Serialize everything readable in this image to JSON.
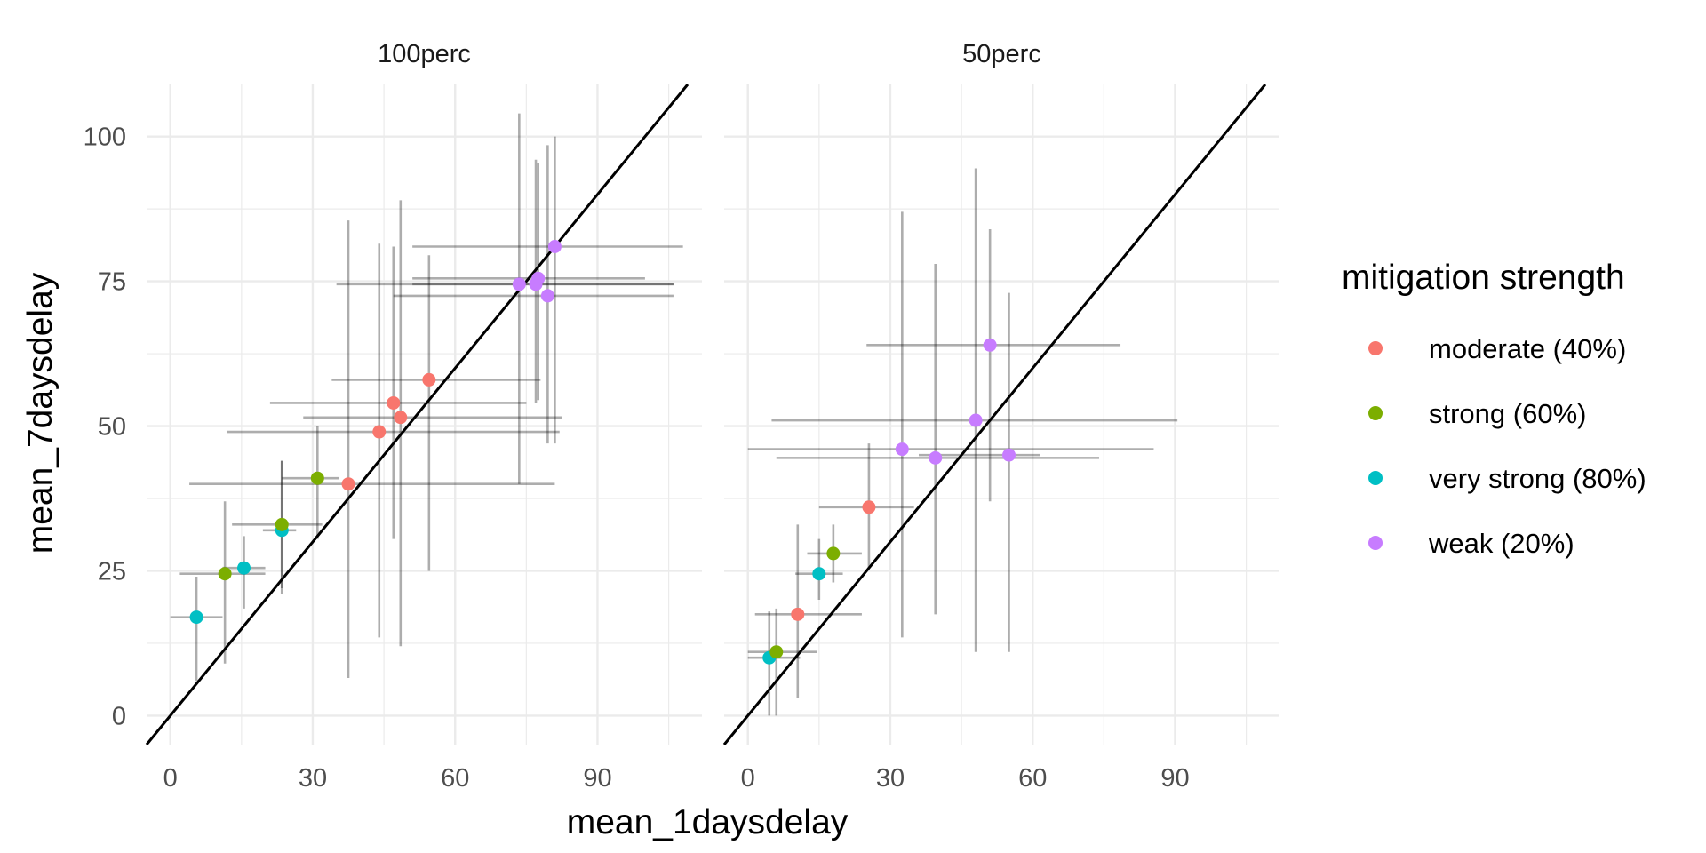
{
  "chart_data": {
    "type": "scatter",
    "xlabel": "mean_1daysdelay",
    "ylabel": "mean_7daysdelay",
    "xlim": [
      -5,
      112
    ],
    "ylim": [
      -5,
      109
    ],
    "x_ticks": [
      0,
      30,
      60,
      90
    ],
    "y_ticks": [
      0,
      25,
      50,
      75,
      100
    ],
    "grid": true,
    "reference_line": "y = x",
    "legend": {
      "title": "mitigation strength",
      "position": "right",
      "entries": [
        {
          "label": "moderate (40%)",
          "color": "#F8766D"
        },
        {
          "label": "strong (60%)",
          "color": "#7CAE00"
        },
        {
          "label": "very strong (80%)",
          "color": "#00BFC4"
        },
        {
          "label": "weak (20%)",
          "color": "#C77CFF"
        }
      ]
    },
    "panels": [
      {
        "label": "100perc",
        "points": [
          {
            "group": "very strong (80%)",
            "x": 5.5,
            "y": 17,
            "xerr": [
              0,
              11
            ],
            "yerr": [
              6,
              24
            ]
          },
          {
            "group": "strong (60%)",
            "x": 11.5,
            "y": 24.5,
            "xerr": [
              2,
              20
            ],
            "yerr": [
              9,
              37
            ]
          },
          {
            "group": "very strong (80%)",
            "x": 15.5,
            "y": 25.5,
            "xerr": [
              11,
              20
            ],
            "yerr": [
              18.5,
              31
            ]
          },
          {
            "group": "very strong (80%)",
            "x": 23.5,
            "y": 32,
            "xerr": [
              19.5,
              26.5
            ],
            "yerr": [
              21,
              44
            ]
          },
          {
            "group": "strong (60%)",
            "x": 23.5,
            "y": 33,
            "xerr": [
              13,
              32
            ],
            "yerr": [
              22,
              44
            ]
          },
          {
            "group": "strong (60%)",
            "x": 31,
            "y": 41,
            "xerr": [
              23.5,
              35.5
            ],
            "yerr": [
              30.5,
              50
            ]
          },
          {
            "group": "moderate (40%)",
            "x": 37.5,
            "y": 40,
            "xerr": [
              4,
              81
            ],
            "yerr": [
              6.5,
              85.5
            ]
          },
          {
            "group": "moderate (40%)",
            "x": 44,
            "y": 49,
            "xerr": [
              12,
              82
            ],
            "yerr": [
              13.5,
              81.5
            ]
          },
          {
            "group": "moderate (40%)",
            "x": 47,
            "y": 54,
            "xerr": [
              21,
              75
            ],
            "yerr": [
              30.5,
              81
            ]
          },
          {
            "group": "moderate (40%)",
            "x": 48.5,
            "y": 51.5,
            "xerr": [
              28,
              82.5
            ],
            "yerr": [
              12,
              89
            ]
          },
          {
            "group": "moderate (40%)",
            "x": 54.5,
            "y": 58,
            "xerr": [
              34,
              78
            ],
            "yerr": [
              25,
              79.5
            ]
          },
          {
            "group": "weak (20%)",
            "x": 73.5,
            "y": 74.5,
            "xerr": [
              35,
              106
            ],
            "yerr": [
              40,
              104
            ]
          },
          {
            "group": "weak (20%)",
            "x": 77,
            "y": 74.5,
            "xerr": [
              51,
              106
            ],
            "yerr": [
              54,
              96
            ]
          },
          {
            "group": "weak (20%)",
            "x": 77.5,
            "y": 75.5,
            "xerr": [
              51,
              100
            ],
            "yerr": [
              54.5,
              95.5
            ]
          },
          {
            "group": "weak (20%)",
            "x": 79.5,
            "y": 72.5,
            "xerr": [
              47,
              106
            ],
            "yerr": [
              47,
              98.5
            ]
          },
          {
            "group": "weak (20%)",
            "x": 81,
            "y": 81,
            "xerr": [
              51,
              108
            ],
            "yerr": [
              47,
              100
            ]
          }
        ]
      },
      {
        "label": "50perc",
        "points": [
          {
            "group": "very strong (80%)",
            "x": 4.5,
            "y": 10,
            "xerr": [
              0,
              11
            ],
            "yerr": [
              0,
              18
            ]
          },
          {
            "group": "strong (60%)",
            "x": 6,
            "y": 11,
            "xerr": [
              0,
              14.5
            ],
            "yerr": [
              0,
              18.5
            ]
          },
          {
            "group": "moderate (40%)",
            "x": 10.5,
            "y": 17.5,
            "xerr": [
              1.5,
              24
            ],
            "yerr": [
              3,
              33
            ]
          },
          {
            "group": "very strong (80%)",
            "x": 15,
            "y": 24.5,
            "xerr": [
              10,
              20
            ],
            "yerr": [
              20,
              30.5
            ]
          },
          {
            "group": "strong (60%)",
            "x": 18,
            "y": 28,
            "xerr": [
              12.5,
              24
            ],
            "yerr": [
              23,
              33
            ]
          },
          {
            "group": "moderate (40%)",
            "x": 25.5,
            "y": 36,
            "xerr": [
              15,
              35
            ],
            "yerr": [
              25.5,
              47
            ]
          },
          {
            "group": "weak (20%)",
            "x": 32.5,
            "y": 46,
            "xerr": [
              0,
              85.5
            ],
            "yerr": [
              13.5,
              87
            ]
          },
          {
            "group": "weak (20%)",
            "x": 39.5,
            "y": 44.5,
            "xerr": [
              6,
              74
            ],
            "yerr": [
              17.5,
              78
            ]
          },
          {
            "group": "weak (20%)",
            "x": 48,
            "y": 51,
            "xerr": [
              5,
              90.5
            ],
            "yerr": [
              11,
              94.5
            ]
          },
          {
            "group": "weak (20%)",
            "x": 51,
            "y": 64,
            "xerr": [
              25,
              78.5
            ],
            "yerr": [
              37,
              84
            ]
          },
          {
            "group": "weak (20%)",
            "x": 55,
            "y": 45,
            "xerr": [
              36,
              61.5
            ],
            "yerr": [
              11,
              73
            ]
          }
        ]
      }
    ]
  }
}
